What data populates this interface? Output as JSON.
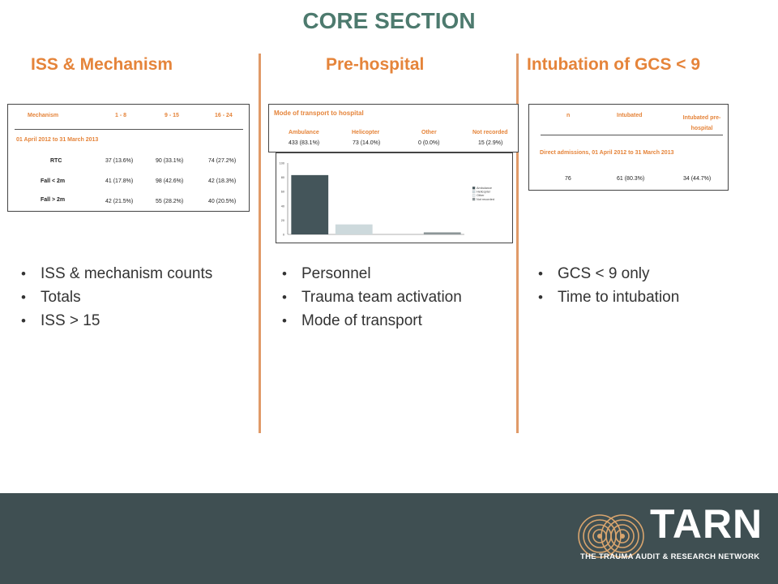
{
  "slide_title": "CORE SECTION",
  "columns": {
    "iss": {
      "heading": "ISS & Mechanism",
      "table": {
        "col_headers": [
          "Mechanism",
          "1 - 8",
          "9 - 15",
          "16 - 24"
        ],
        "period": "01 April 2012 to 31 March 2013",
        "rows": [
          {
            "label": "RTC",
            "c1": "37 (13.6%)",
            "c2": "90 (33.1%)",
            "c3": "74 (27.2%)"
          },
          {
            "label": "Fall < 2m",
            "c1": "41 (17.8%)",
            "c2": "98 (42.6%)",
            "c3": "42 (18.3%)"
          },
          {
            "label": "Fall > 2m",
            "c1": "42 (21.5%)",
            "c2": "55 (28.2%)",
            "c3": "40 (20.5%)"
          }
        ]
      },
      "bullets": [
        "ISS & mechanism counts",
        "Totals",
        "ISS > 15"
      ]
    },
    "prehospital": {
      "heading": "Pre-hospital",
      "table": {
        "title": "Mode of transport to hospital",
        "col_headers": [
          "Ambulance",
          "Helicopter",
          "Other",
          "Not recorded"
        ],
        "values": [
          "433 (83.1%)",
          "73 (14.0%)",
          "0 (0.0%)",
          "15 (2.9%)"
        ]
      },
      "bullets": [
        "Personnel",
        "Trauma team activation",
        "Mode of transport"
      ]
    },
    "intubation": {
      "heading": "Intubation of GCS < 9",
      "table": {
        "col_headers": [
          "n",
          "Intubated",
          "Intubated pre-hospital"
        ],
        "period": "Direct admissions, 01 April 2012 to 31 March 2013",
        "values": [
          "76",
          "61 (80.3%)",
          "34 (44.7%)"
        ]
      },
      "bullets": [
        "GCS < 9 only",
        "Time to intubation"
      ]
    }
  },
  "chart_data": {
    "type": "bar",
    "categories": [
      "Ambulance",
      "Helicopter",
      "Other",
      "Not recorded"
    ],
    "values": [
      83.1,
      14.0,
      0.0,
      2.9
    ],
    "ylim": [
      0,
      100
    ],
    "yticks": [
      "0",
      "20",
      "40",
      "60",
      "80",
      "100"
    ],
    "legend": [
      "Ambulance",
      "Helicopter",
      "Other",
      "Not recorded"
    ],
    "legend_placement": "right",
    "colors": [
      "#44555a",
      "#cdd9dc",
      "#e6ecee",
      "#8d9698"
    ]
  },
  "footer": {
    "brand": "TARN",
    "tagline": "THE TRAUMA AUDIT & RESEARCH NETWORK",
    "background": "#3f4f52"
  },
  "colors": {
    "title": "#4d7a6e",
    "heading": "#e5843a",
    "divider": "#e09a68"
  }
}
